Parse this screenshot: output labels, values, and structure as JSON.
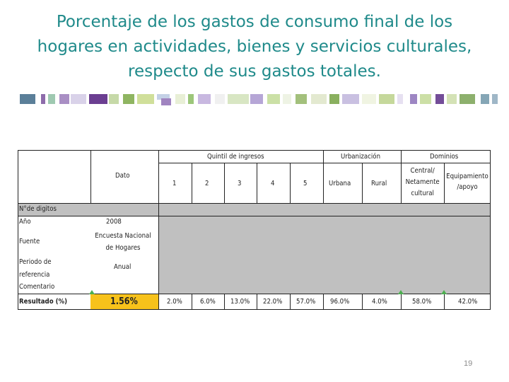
{
  "slide": {
    "title": "Porcentaje de los gastos de consumo final de los hogares en actividades, bienes y servicios culturales, respecto de sus gastos totales.",
    "page_number": "19"
  },
  "table": {
    "header": {
      "dato": "Dato",
      "group_quintil": "Quintil de ingresos",
      "group_urbanizacion": "Urbanización",
      "group_dominios": "Dominios",
      "columns": [
        "1",
        "2",
        "3",
        "4",
        "5",
        "Urbana",
        "Rural",
        "Central/ Netamente cultural",
        "Equipamiento /apoyo"
      ]
    },
    "rows": {
      "digitos_label": "N°de digitos",
      "anio_label": "Año",
      "anio_value": "2008",
      "fuente_label": "Fuente",
      "fuente_value": "Encuesta Nacional de Hogares",
      "periodo_label": "Periodo de referencia",
      "periodo_value": "Anual",
      "comentario_label": "Comentario",
      "resultado_label": "Resultado (%)",
      "resultado_value": "1.56%",
      "resultado_columns": [
        "2.0%",
        "6.0%",
        "13.0%",
        "22.0%",
        "57.0%",
        "96.0%",
        "4.0%",
        "58.0%",
        "42.0%"
      ]
    }
  },
  "colors": {
    "title": "#1f8a8a",
    "highlight": "#f7c21b",
    "gray_fill": "#c0c0c0",
    "marker": "#4caf50"
  }
}
